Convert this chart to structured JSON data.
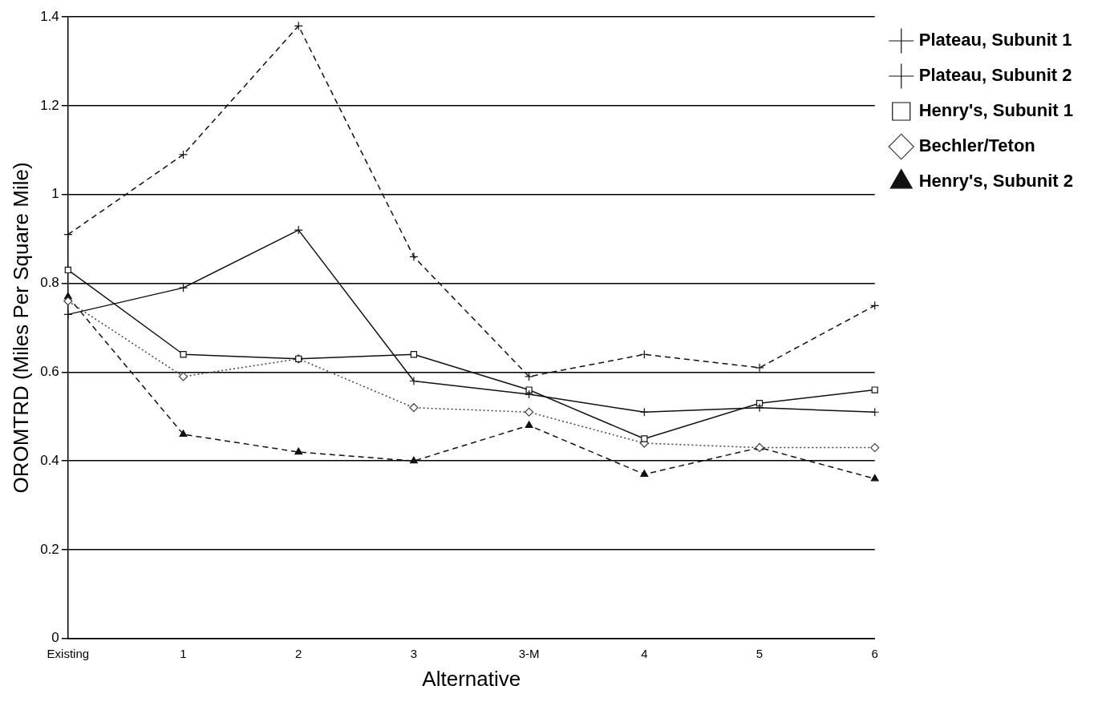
{
  "chart_data": {
    "type": "line",
    "xlabel": "Alternative",
    "ylabel": "OROMTRD (Miles Per Square Mile)",
    "categories": [
      "Existing",
      "1",
      "2",
      "3",
      "3-M",
      "4",
      "5",
      "6"
    ],
    "ylim": [
      0,
      1.4
    ],
    "yticks": [
      0,
      0.2,
      0.4,
      0.6,
      0.8,
      1,
      1.2,
      1.4
    ],
    "grid": "y",
    "legend": "right",
    "series": [
      {
        "name": "Plateau, Subunit 1",
        "color": "#111111",
        "marker": "cross",
        "line_style": "dashed",
        "values": [
          0.91,
          1.09,
          1.38,
          0.86,
          0.59,
          0.64,
          0.61,
          0.75
        ]
      },
      {
        "name": "Plateau, Subunit 2",
        "color": "#111111",
        "marker": "cross",
        "line_style": "solid",
        "values": [
          0.73,
          0.79,
          0.92,
          0.58,
          0.55,
          0.51,
          0.52,
          0.51
        ]
      },
      {
        "name": "Henry's, Subunit 1",
        "color": "#111111",
        "marker": "square",
        "line_style": "solid",
        "values": [
          0.83,
          0.64,
          0.63,
          0.64,
          0.56,
          0.45,
          0.53,
          0.56
        ]
      },
      {
        "name": "Bechler/Teton",
        "color": "#444444",
        "marker": "diamond",
        "line_style": "dotted",
        "values": [
          0.76,
          0.59,
          0.63,
          0.52,
          0.51,
          0.44,
          0.43,
          0.43
        ]
      },
      {
        "name": "Henry's, Subunit 2",
        "color": "#111111",
        "marker": "triangle",
        "line_style": "dashed",
        "values": [
          0.77,
          0.46,
          0.42,
          0.4,
          0.48,
          0.37,
          0.43,
          0.36
        ]
      }
    ]
  }
}
